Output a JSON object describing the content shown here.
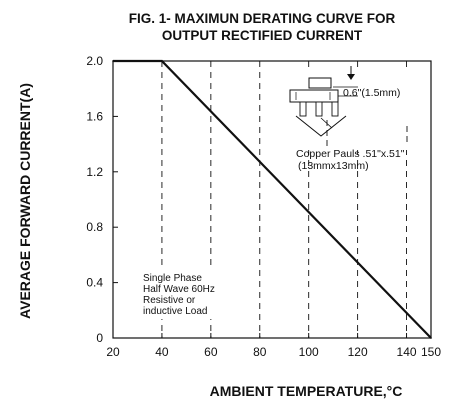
{
  "chart_data": {
    "type": "line",
    "title_lines": [
      "FIG. 1- MAXIMUN DERATING CURVE FOR",
      "OUTPUT RECTIFIED CURRENT"
    ],
    "xlabel": "AMBIENT TEMPERATURE,°C",
    "ylabel": "AVERAGE FORWARD CURRENT(A)",
    "xlim": [
      20,
      150
    ],
    "ylim": [
      0,
      2.0
    ],
    "x_ticks": [
      20,
      40,
      60,
      80,
      100,
      120,
      140,
      150
    ],
    "x_tick_labels": [
      "20",
      "40",
      "60",
      "80",
      "100",
      "120",
      "140",
      "150"
    ],
    "y_ticks": [
      0,
      0.4,
      0.8,
      1.2,
      1.6,
      2.0
    ],
    "y_tick_labels": [
      "0",
      "0.4",
      "0.8",
      "1.2",
      "1.6",
      "2.0"
    ],
    "grid": "dashed-vertical",
    "series": [
      {
        "x": [
          20,
          40,
          150
        ],
        "y": [
          2.0,
          2.0,
          0
        ],
        "color": "#111111"
      }
    ],
    "annotations": {
      "conditions_lines": [
        "Single Phase",
        "Half Wave 60Hz",
        "Resistive or",
        "inductive Load"
      ],
      "inset_dimension": "0.6\"(1.5mm)",
      "inset_pad_lines": [
        "Copper Pauls .51\"x.51\"",
        "(13mmx13mm)"
      ]
    }
  }
}
